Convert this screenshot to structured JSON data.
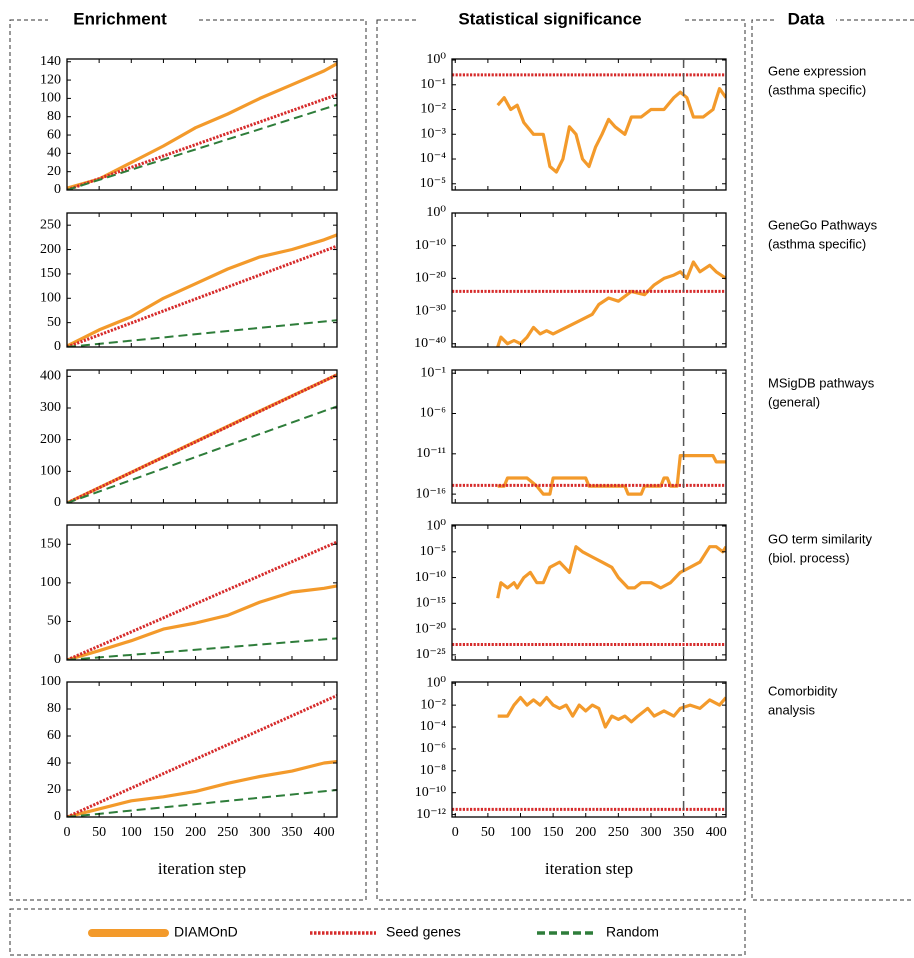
{
  "sections": [
    "Enrichment",
    "Statistical significance",
    "Data"
  ],
  "data_rows": [
    [
      "Gene expression",
      "(asthma specific)"
    ],
    [
      "GeneGo Pathways",
      "(asthma specific)"
    ],
    [
      "MSigDB pathways",
      "(general)"
    ],
    [
      "GO term similarity",
      "(biol. process)"
    ],
    [
      "Comorbidity",
      "analysis"
    ]
  ],
  "vline": 350,
  "chart_data": [
    {
      "type": "line",
      "xlim": [
        0,
        420
      ],
      "xticks": [
        0,
        50,
        100,
        150,
        200,
        250,
        300,
        350,
        400
      ],
      "ylim": [
        0,
        143
      ],
      "yticks": [
        0,
        20,
        40,
        60,
        80,
        100,
        120,
        140
      ],
      "series": [
        {
          "name": "DIAMOnD",
          "color": "#f39a2b",
          "linestyle": "solid",
          "x": [
            0,
            50,
            100,
            150,
            200,
            250,
            300,
            350,
            400,
            420
          ],
          "values": [
            2,
            12,
            30,
            48,
            68,
            83,
            100,
            115,
            130,
            138
          ]
        },
        {
          "name": "Seed genes",
          "color": "#d62b2b",
          "linestyle": "dotted",
          "x": [
            0,
            420
          ],
          "values": [
            0,
            104
          ]
        },
        {
          "name": "Random",
          "color": "#2e7d3a",
          "linestyle": "dashed",
          "x": [
            0,
            420
          ],
          "values": [
            0,
            93
          ]
        }
      ]
    },
    {
      "type": "line",
      "xlim": [
        0,
        420
      ],
      "xticks": [
        0,
        50,
        100,
        150,
        200,
        250,
        300,
        350,
        400
      ],
      "ylim": [
        0,
        275
      ],
      "yticks": [
        0,
        50,
        100,
        150,
        200,
        250
      ],
      "series": [
        {
          "color": "#f39a2b",
          "linestyle": "solid",
          "x": [
            0,
            50,
            100,
            150,
            200,
            250,
            300,
            350,
            400,
            420
          ],
          "values": [
            2,
            35,
            62,
            100,
            130,
            160,
            185,
            200,
            220,
            230
          ]
        },
        {
          "color": "#d62b2b",
          "linestyle": "dotted",
          "x": [
            0,
            420
          ],
          "values": [
            0,
            207
          ]
        },
        {
          "color": "#2e7d3a",
          "linestyle": "dashed",
          "x": [
            0,
            420
          ],
          "values": [
            0,
            55
          ]
        }
      ]
    },
    {
      "type": "line",
      "xlim": [
        0,
        420
      ],
      "xticks": [
        0,
        50,
        100,
        150,
        200,
        250,
        300,
        350,
        400
      ],
      "ylim": [
        0,
        420
      ],
      "yticks": [
        0,
        100,
        200,
        300,
        400
      ],
      "series": [
        {
          "color": "#f39a2b",
          "linestyle": "solid",
          "x": [
            0,
            100,
            200,
            300,
            420
          ],
          "values": [
            0,
            97,
            194,
            291,
            405
          ]
        },
        {
          "color": "#d62b2b",
          "linestyle": "dotted",
          "x": [
            0,
            420
          ],
          "values": [
            0,
            405
          ]
        },
        {
          "color": "#2e7d3a",
          "linestyle": "dashed",
          "x": [
            0,
            420
          ],
          "values": [
            0,
            305
          ]
        }
      ]
    },
    {
      "type": "line",
      "xlim": [
        0,
        420
      ],
      "xticks": [
        0,
        50,
        100,
        150,
        200,
        250,
        300,
        350,
        400
      ],
      "ylim": [
        0,
        175
      ],
      "yticks": [
        0,
        50,
        100,
        150
      ],
      "series": [
        {
          "color": "#f39a2b",
          "linestyle": "solid",
          "x": [
            0,
            50,
            100,
            150,
            200,
            250,
            300,
            350,
            400,
            420
          ],
          "values": [
            0,
            12,
            25,
            40,
            48,
            58,
            75,
            88,
            93,
            96
          ]
        },
        {
          "color": "#d62b2b",
          "linestyle": "dotted",
          "x": [
            0,
            420
          ],
          "values": [
            0,
            153
          ]
        },
        {
          "color": "#2e7d3a",
          "linestyle": "dashed",
          "x": [
            0,
            420
          ],
          "values": [
            0,
            28
          ]
        }
      ]
    },
    {
      "type": "line",
      "xlim": [
        0,
        420
      ],
      "xticks": [
        0,
        50,
        100,
        150,
        200,
        250,
        300,
        350,
        400
      ],
      "ylim": [
        0,
        100
      ],
      "yticks": [
        0,
        20,
        40,
        60,
        80,
        100
      ],
      "xlabel": "iteration step",
      "series": [
        {
          "color": "#f39a2b",
          "linestyle": "solid",
          "x": [
            0,
            50,
            100,
            150,
            200,
            250,
            300,
            350,
            400,
            420
          ],
          "values": [
            0,
            6,
            12,
            15,
            19,
            25,
            30,
            34,
            40,
            41
          ]
        },
        {
          "color": "#d62b2b",
          "linestyle": "dotted",
          "x": [
            0,
            420
          ],
          "values": [
            0,
            90
          ]
        },
        {
          "color": "#2e7d3a",
          "linestyle": "dashed",
          "x": [
            0,
            420
          ],
          "values": [
            0,
            20
          ]
        }
      ]
    },
    {
      "type": "line",
      "log_y": true,
      "xlim": [
        -5,
        415
      ],
      "xticks": [
        0,
        50,
        100,
        150,
        200,
        250,
        300,
        350,
        400
      ],
      "ylim": [
        5.6e-06,
        1.1
      ],
      "yticks": [
        {
          "value": 1,
          "label": "10⁰"
        },
        {
          "value": 0.1,
          "label": "10⁻¹"
        },
        {
          "value": 0.01,
          "label": "10⁻²"
        },
        {
          "value": 0.001,
          "label": "10⁻³"
        },
        {
          "value": 0.0001,
          "label": "10⁻⁴"
        },
        {
          "value": 1e-05,
          "label": "10⁻⁵"
        }
      ],
      "series": [
        {
          "color": "#f39a2b",
          "linestyle": "solid",
          "x": [
            65,
            75,
            85,
            95,
            105,
            120,
            135,
            145,
            155,
            165,
            175,
            185,
            195,
            205,
            215,
            225,
            235,
            245,
            260,
            270,
            285,
            300,
            320,
            335,
            345,
            355,
            365,
            380,
            395,
            405,
            415
          ],
          "values": [
            0.015,
            0.03,
            0.01,
            0.015,
            0.003,
            0.001,
            0.001,
            5e-05,
            3e-05,
            0.0001,
            0.002,
            0.001,
            0.0001,
            5e-05,
            0.0003,
            0.001,
            0.004,
            0.002,
            0.001,
            0.005,
            0.005,
            0.01,
            0.01,
            0.03,
            0.05,
            0.03,
            0.005,
            0.005,
            0.01,
            0.07,
            0.03
          ]
        },
        {
          "color": "#d62b2b",
          "linestyle": "dotted",
          "x": [
            -5,
            415
          ],
          "values": [
            0.25,
            0.25
          ]
        }
      ]
    },
    {
      "type": "line",
      "log_y": true,
      "xlim": [
        -5,
        415
      ],
      "xticks": [
        0,
        50,
        100,
        150,
        200,
        250,
        300,
        350,
        400
      ],
      "ylim": [
        1e-41,
        1
      ],
      "yticks": [
        {
          "value": 1,
          "label": "10⁰"
        },
        {
          "value": 1e-10,
          "label": "10⁻¹⁰"
        },
        {
          "value": 1e-20,
          "label": "10⁻²⁰"
        },
        {
          "value": 1e-30,
          "label": "10⁻³⁰"
        },
        {
          "value": 1e-40,
          "label": "10⁻⁴⁰"
        }
      ],
      "series": [
        {
          "color": "#f39a2b",
          "linestyle": "solid",
          "x": [
            65,
            70,
            80,
            90,
            100,
            110,
            120,
            130,
            140,
            150,
            170,
            190,
            210,
            220,
            235,
            250,
            270,
            290,
            305,
            320,
            335,
            345,
            355,
            365,
            375,
            390,
            400,
            415
          ],
          "values": [
            1e-41,
            1e-38,
            1e-40,
            1e-39,
            1e-40,
            1e-38,
            1e-35,
            1e-37,
            1e-36,
            1e-37,
            1e-35,
            1e-33,
            1e-31,
            1e-28,
            1e-26,
            1e-27,
            1e-24,
            1e-25,
            1e-22,
            1e-20,
            1e-19,
            1e-18,
            1e-20,
            1e-15,
            1e-18,
            1e-16,
            1e-18,
            1e-20
          ]
        },
        {
          "color": "#d62b2b",
          "linestyle": "dotted",
          "x": [
            -5,
            415
          ],
          "values": [
            1e-24,
            1e-24
          ]
        }
      ]
    },
    {
      "type": "line",
      "log_y": true,
      "xlim": [
        -5,
        415
      ],
      "xticks": [
        0,
        50,
        100,
        150,
        200,
        250,
        300,
        350,
        400
      ],
      "ylim": [
        7.9e-18,
        0.25
      ],
      "yticks": [
        {
          "value": 0.1,
          "label": "10⁻¹"
        },
        {
          "value": 1e-06,
          "label": "10⁻⁶"
        },
        {
          "value": 1e-11,
          "label": "10⁻¹¹"
        },
        {
          "value": 1e-16,
          "label": "10⁻¹⁶"
        }
      ],
      "series": [
        {
          "color": "#f39a2b",
          "linestyle": "solid",
          "x": [
            65,
            75,
            80,
            95,
            110,
            125,
            135,
            145,
            150,
            200,
            205,
            260,
            265,
            285,
            290,
            315,
            320,
            325,
            330,
            340,
            345,
            395,
            400,
            415
          ],
          "values": [
            1e-15,
            1e-15,
            1e-14,
            1e-14,
            1e-14,
            1e-15,
            1e-16,
            1e-16,
            1e-14,
            1e-14,
            1e-15,
            1e-15,
            1e-16,
            1e-16,
            1e-15,
            1e-15,
            1e-14,
            1e-14,
            1e-15,
            1e-15,
            6e-12,
            6e-12,
            1e-12,
            1e-12
          ]
        },
        {
          "color": "#d62b2b",
          "linestyle": "dotted",
          "x": [
            -5,
            415
          ],
          "values": [
            1.2e-15,
            1.2e-15
          ]
        }
      ]
    },
    {
      "type": "line",
      "log_y": true,
      "xlim": [
        -5,
        415
      ],
      "xticks": [
        0,
        50,
        100,
        150,
        200,
        250,
        300,
        350,
        400
      ],
      "ylim": [
        1e-26,
        1.6
      ],
      "yticks": [
        {
          "value": 1,
          "label": "10⁰"
        },
        {
          "value": 1e-05,
          "label": "10⁻⁵"
        },
        {
          "value": 1e-10,
          "label": "10⁻¹⁰"
        },
        {
          "value": 1e-15,
          "label": "10⁻¹⁵"
        },
        {
          "value": 1e-20,
          "label": "10⁻²⁰"
        },
        {
          "value": 1e-25,
          "label": "10⁻²⁵"
        }
      ],
      "series": [
        {
          "color": "#f39a2b",
          "linestyle": "solid",
          "x": [
            65,
            70,
            80,
            90,
            95,
            105,
            115,
            125,
            135,
            145,
            160,
            175,
            185,
            195,
            210,
            225,
            240,
            250,
            265,
            275,
            285,
            300,
            315,
            330,
            345,
            360,
            375,
            390,
            400,
            410,
            415
          ],
          "values": [
            1e-14,
            1e-11,
            1e-12,
            1e-11,
            1e-12,
            1e-10,
            1e-09,
            1e-11,
            1e-11,
            1e-08,
            1e-07,
            1e-09,
            0.0001,
            1e-05,
            1e-06,
            1e-07,
            1e-08,
            1e-10,
            1e-12,
            1e-12,
            1e-11,
            1e-11,
            1e-12,
            1e-11,
            1e-09,
            1e-08,
            1e-07,
            0.0001,
            0.0001,
            1e-05,
            0.0001
          ]
        },
        {
          "color": "#d62b2b",
          "linestyle": "dotted",
          "x": [
            -5,
            415
          ],
          "values": [
            1e-23,
            1e-23
          ]
        }
      ]
    },
    {
      "type": "line",
      "log_y": true,
      "xlim": [
        -5,
        415
      ],
      "xticks": [
        0,
        50,
        100,
        150,
        200,
        250,
        300,
        350,
        400
      ],
      "ylim": [
        6e-13,
        1.3
      ],
      "xlabel": "iteration step",
      "yticks": [
        {
          "value": 1,
          "label": "10⁰"
        },
        {
          "value": 0.01,
          "label": "10⁻²"
        },
        {
          "value": 0.0001,
          "label": "10⁻⁴"
        },
        {
          "value": 1e-06,
          "label": "10⁻⁶"
        },
        {
          "value": 1e-08,
          "label": "10⁻⁸"
        },
        {
          "value": 1e-10,
          "label": "10⁻¹⁰"
        },
        {
          "value": 1e-12,
          "label": "10⁻¹²"
        }
      ],
      "series": [
        {
          "color": "#f39a2b",
          "linestyle": "solid",
          "x": [
            65,
            80,
            90,
            100,
            110,
            120,
            130,
            140,
            150,
            160,
            170,
            180,
            190,
            200,
            210,
            220,
            230,
            240,
            250,
            260,
            270,
            280,
            295,
            305,
            320,
            335,
            345,
            360,
            375,
            390,
            405,
            415
          ],
          "values": [
            0.001,
            0.001,
            0.01,
            0.05,
            0.01,
            0.03,
            0.01,
            0.05,
            0.01,
            0.005,
            0.01,
            0.001,
            0.01,
            0.003,
            0.01,
            0.005,
            0.0001,
            0.001,
            0.0005,
            0.001,
            0.0003,
            0.001,
            0.005,
            0.001,
            0.003,
            0.001,
            0.005,
            0.01,
            0.005,
            0.03,
            0.01,
            0.05
          ]
        },
        {
          "color": "#d62b2b",
          "linestyle": "dotted",
          "x": [
            -5,
            415
          ],
          "values": [
            3e-12,
            3e-12
          ]
        }
      ]
    }
  ]
}
